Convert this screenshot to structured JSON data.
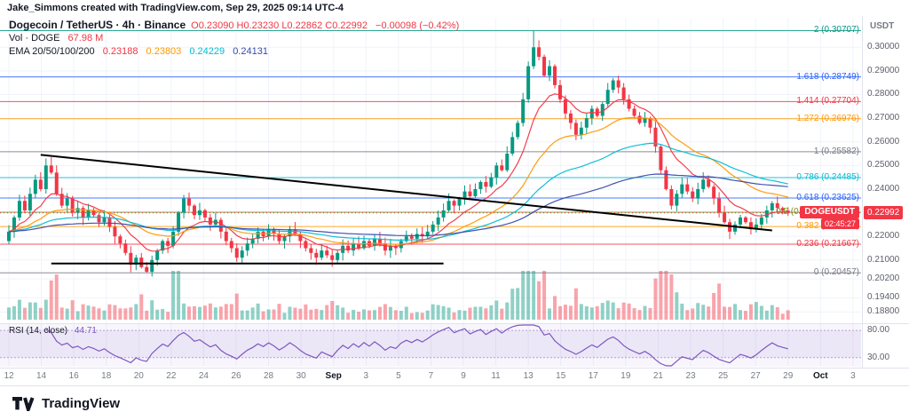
{
  "attribution": "Jake_Simmons created with TradingView.com, Sep 29, 2025 09:14 UTC-4",
  "header": {
    "title": "Dogecoin / TetherUS · 4h · Binance",
    "ohlc": {
      "o": "O0.23090",
      "h": "H0.23230",
      "l": "L0.22862",
      "c": "C0.22992",
      "change": "−0.00098 (−0.42%)"
    },
    "vol": {
      "label": "Vol · DOGE",
      "value": "67.98 M"
    },
    "ema": {
      "label": "EMA 20/50/100/200",
      "v1": "0.23188",
      "v2": "0.23803",
      "v3": "0.24229",
      "v4": "0.24131"
    }
  },
  "symbol_badge": {
    "text": "DOGEUSDT",
    "countdown": "02:45:27",
    "color": "#f23645"
  },
  "price_scale": {
    "unit": "USDT",
    "badge": {
      "label": "0.22992",
      "price": 0.22992,
      "color": "#f23645"
    },
    "ticks": [
      {
        "label": "0.30000",
        "price": 0.3
      },
      {
        "label": "0.29000",
        "price": 0.29
      },
      {
        "label": "0.28000",
        "price": 0.28
      },
      {
        "label": "0.27000",
        "price": 0.27
      },
      {
        "label": "0.26000",
        "price": 0.26
      },
      {
        "label": "0.25000",
        "price": 0.25
      },
      {
        "label": "0.24000",
        "price": 0.24
      },
      {
        "label": "0.23000",
        "price": 0.23
      },
      {
        "label": "0.22000",
        "price": 0.22
      },
      {
        "label": "0.21000",
        "price": 0.21
      },
      {
        "label": "0.20200",
        "price": 0.202
      },
      {
        "label": "0.19400",
        "price": 0.194
      },
      {
        "label": "0.18800",
        "price": 0.188
      }
    ]
  },
  "fib_levels": [
    {
      "text": "2 (0.30707)",
      "price": 0.30707,
      "color": "#089981"
    },
    {
      "text": "1.618 (0.28749)",
      "price": 0.28749,
      "color": "#2962ff"
    },
    {
      "text": "1.414 (0.27704)",
      "price": 0.27704,
      "color": "#f23645"
    },
    {
      "text": "1.272 (0.26976)",
      "price": 0.26976,
      "color": "#ff9800"
    },
    {
      "text": "1 (0.25582)",
      "price": 0.25582,
      "color": "#787b86"
    },
    {
      "text": "0.786 (0.24485)",
      "price": 0.24485,
      "color": "#00bcd4"
    },
    {
      "text": "0.618 (0.23625)",
      "price": 0.23625,
      "color": "#2962ff"
    },
    {
      "text": "0.5 (0.2",
      "price": 0.2302,
      "color": "#7f8c1e"
    },
    {
      "text": "0.382 (0.22415)",
      "price": 0.22415,
      "color": "#ff9800"
    },
    {
      "text": "0.236 (0.21667)",
      "price": 0.21667,
      "color": "#f23645"
    },
    {
      "text": "0 (0.20457)",
      "price": 0.20457,
      "color": "#787b86"
    }
  ],
  "rsi": {
    "legend_label": "RSI (14, close)",
    "legend_value": "44.71",
    "upper_label": "80.00",
    "lower_label": "30.00",
    "upper": 80,
    "lower": 30,
    "color": "#7e57c2"
  },
  "time_axis": {
    "ticks": [
      {
        "label": "12",
        "day": 0
      },
      {
        "label": "14",
        "day": 2
      },
      {
        "label": "16",
        "day": 4
      },
      {
        "label": "18",
        "day": 6
      },
      {
        "label": "20",
        "day": 8
      },
      {
        "label": "22",
        "day": 10
      },
      {
        "label": "24",
        "day": 12
      },
      {
        "label": "26",
        "day": 14
      },
      {
        "label": "28",
        "day": 16
      },
      {
        "label": "30",
        "day": 18
      },
      {
        "label": "Sep",
        "day": 20,
        "major": true
      },
      {
        "label": "3",
        "day": 22
      },
      {
        "label": "5",
        "day": 24
      },
      {
        "label": "7",
        "day": 26
      },
      {
        "label": "9",
        "day": 28
      },
      {
        "label": "11",
        "day": 30
      },
      {
        "label": "13",
        "day": 32
      },
      {
        "label": "15",
        "day": 34
      },
      {
        "label": "17",
        "day": 36
      },
      {
        "label": "19",
        "day": 38
      },
      {
        "label": "21",
        "day": 40
      },
      {
        "label": "23",
        "day": 42
      },
      {
        "label": "25",
        "day": 44
      },
      {
        "label": "27",
        "day": 46
      },
      {
        "label": "29",
        "day": 48
      },
      {
        "label": "Oct",
        "day": 50,
        "major": true
      },
      {
        "label": "3",
        "day": 52
      }
    ]
  },
  "footer": {
    "brand": "TradingView"
  },
  "theme": {
    "up": "#089981",
    "down": "#f23645",
    "rsi": "#7e57c2",
    "badge": "#f23645"
  },
  "chart_data": {
    "type": "candlestick",
    "symbol": "DOGEUSDT",
    "exchange": "Binance",
    "interval": "4h",
    "price_top": 0.3125,
    "price_bottom": 0.184,
    "axis_span_days": 52.5,
    "candle_span_days": 48,
    "first_open": 0.218,
    "last_price": 0.22992,
    "volume_label": "67.98 M",
    "ema_periods": [
      20,
      50,
      100,
      200
    ],
    "closes": [
      0.222,
      0.228,
      0.235,
      0.231,
      0.238,
      0.244,
      0.24,
      0.25,
      0.247,
      0.238,
      0.233,
      0.236,
      0.23,
      0.232,
      0.228,
      0.231,
      0.229,
      0.226,
      0.228,
      0.224,
      0.22,
      0.217,
      0.213,
      0.208,
      0.211,
      0.207,
      0.205,
      0.21,
      0.214,
      0.218,
      0.216,
      0.222,
      0.23,
      0.236,
      0.233,
      0.229,
      0.231,
      0.228,
      0.225,
      0.227,
      0.222,
      0.218,
      0.215,
      0.211,
      0.214,
      0.217,
      0.219,
      0.222,
      0.22,
      0.223,
      0.221,
      0.218,
      0.22,
      0.223,
      0.221,
      0.218,
      0.215,
      0.213,
      0.211,
      0.214,
      0.212,
      0.21,
      0.213,
      0.216,
      0.214,
      0.217,
      0.215,
      0.218,
      0.216,
      0.219,
      0.217,
      0.214,
      0.216,
      0.215,
      0.218,
      0.22,
      0.219,
      0.221,
      0.22,
      0.222,
      0.225,
      0.228,
      0.231,
      0.235,
      0.233,
      0.236,
      0.239,
      0.237,
      0.24,
      0.243,
      0.241,
      0.245,
      0.25,
      0.248,
      0.255,
      0.262,
      0.268,
      0.278,
      0.292,
      0.3,
      0.296,
      0.288,
      0.292,
      0.284,
      0.278,
      0.272,
      0.268,
      0.263,
      0.266,
      0.27,
      0.274,
      0.271,
      0.276,
      0.282,
      0.286,
      0.283,
      0.278,
      0.274,
      0.271,
      0.268,
      0.27,
      0.266,
      0.258,
      0.248,
      0.24,
      0.233,
      0.238,
      0.242,
      0.239,
      0.236,
      0.24,
      0.244,
      0.241,
      0.236,
      0.23,
      0.226,
      0.222,
      0.225,
      0.228,
      0.226,
      0.223,
      0.225,
      0.228,
      0.231,
      0.234,
      0.232,
      0.2309,
      0.22992
    ],
    "wick_overrides": [
      {
        "index": 8,
        "high": 0.2535
      },
      {
        "index": 26,
        "low": 0.20457
      },
      {
        "index": 99,
        "high": 0.30707
      },
      {
        "index": 147,
        "high": 0.2323,
        "low": 0.22862
      }
    ],
    "trendlines": [
      {
        "name": "descending-resistance",
        "from_bar": 6,
        "from_price": 0.2545,
        "to_bar": 144,
        "to_price": 0.2225
      },
      {
        "name": "horizontal-support",
        "from_bar": 8,
        "from_price": 0.2085,
        "to_bar": 82,
        "to_price": 0.2085
      }
    ]
  }
}
